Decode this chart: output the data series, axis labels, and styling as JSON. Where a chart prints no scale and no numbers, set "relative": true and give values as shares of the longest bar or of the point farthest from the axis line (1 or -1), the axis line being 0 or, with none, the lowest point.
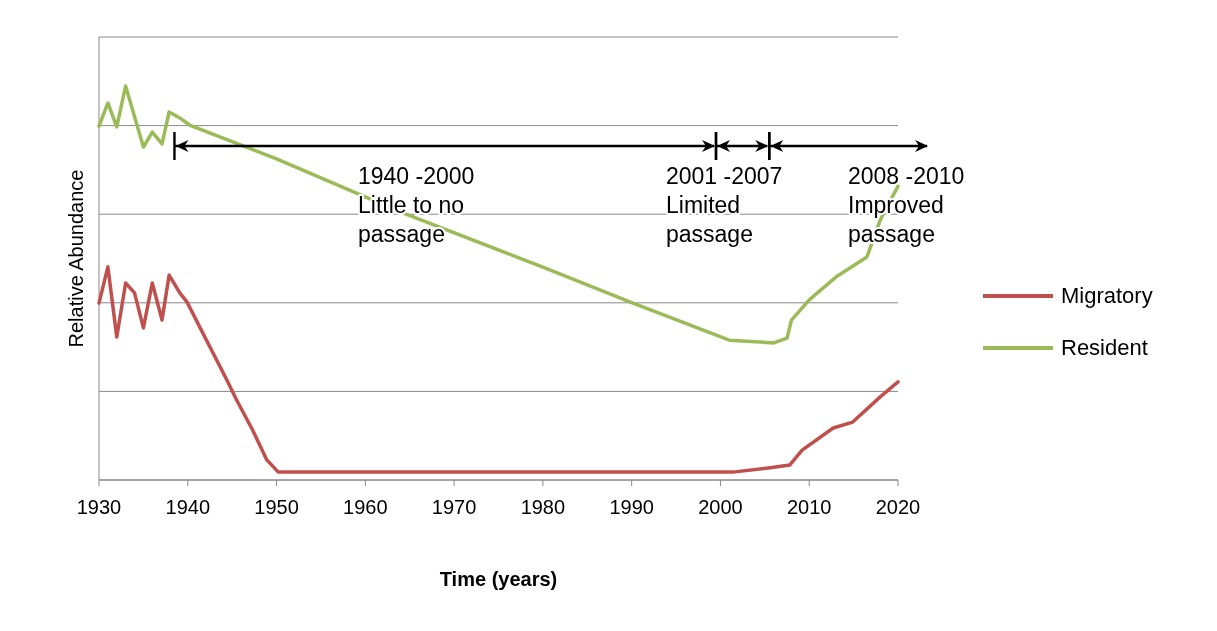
{
  "chart_data": {
    "type": "line",
    "relative": true,
    "xlabel": "Time (years)",
    "ylabel": "Relative Abundance",
    "xlim": [
      1930,
      2020
    ],
    "xticks": [
      1930,
      1940,
      1950,
      1960,
      1970,
      1980,
      1990,
      2000,
      2010,
      2020
    ],
    "tick_labels": "x",
    "grid": "y",
    "legend": "right",
    "marker": "none",
    "line_style": "solid",
    "annotations": [
      "1940 -2000\nLittle to no\npassage",
      "2001 -2007\nLimited\npassage",
      "2008 -2010\nImproved\npassage"
    ],
    "series": [
      {
        "name": "Migratory",
        "color": "#c0504d",
        "x": [
          1930,
          1931,
          1932,
          1933,
          1934,
          1935,
          1936,
          1937.1,
          1937.9,
          1939.1,
          1939.9,
          1944.4,
          1945.5,
          1947.3,
          1948.9,
          1950.2,
          1960,
          1970,
          1980,
          1990,
          2001.4,
          2005.2,
          2007.8,
          2009.2,
          2012.7,
          2014.9,
          2018,
          2020
        ],
        "values": [
          0.449,
          0.541,
          0.363,
          0.5,
          0.475,
          0.386,
          0.5,
          0.406,
          0.52,
          0.475,
          0.452,
          0.254,
          0.203,
          0.127,
          0.051,
          0.02,
          0.02,
          0.02,
          0.02,
          0.02,
          0.02,
          0.03,
          0.038,
          0.076,
          0.132,
          0.147,
          0.211,
          0.249
        ]
      },
      {
        "name": "Resident",
        "color": "#9bbb59",
        "x": [
          1930,
          1931,
          1932,
          1933,
          1935,
          1936,
          1937.1,
          1937.9,
          1939.1,
          1940.2,
          1950,
          1964,
          1980,
          1990,
          2001,
          2006,
          2007.5,
          2008,
          2010,
          2013,
          2016.5,
          2018,
          2020
        ],
        "values": [
          0.898,
          0.957,
          0.896,
          1.0,
          0.845,
          0.883,
          0.853,
          0.934,
          0.919,
          0.901,
          0.815,
          0.68,
          0.54,
          0.45,
          0.355,
          0.348,
          0.36,
          0.406,
          0.457,
          0.515,
          0.566,
          0.66,
          0.746
        ]
      }
    ]
  }
}
